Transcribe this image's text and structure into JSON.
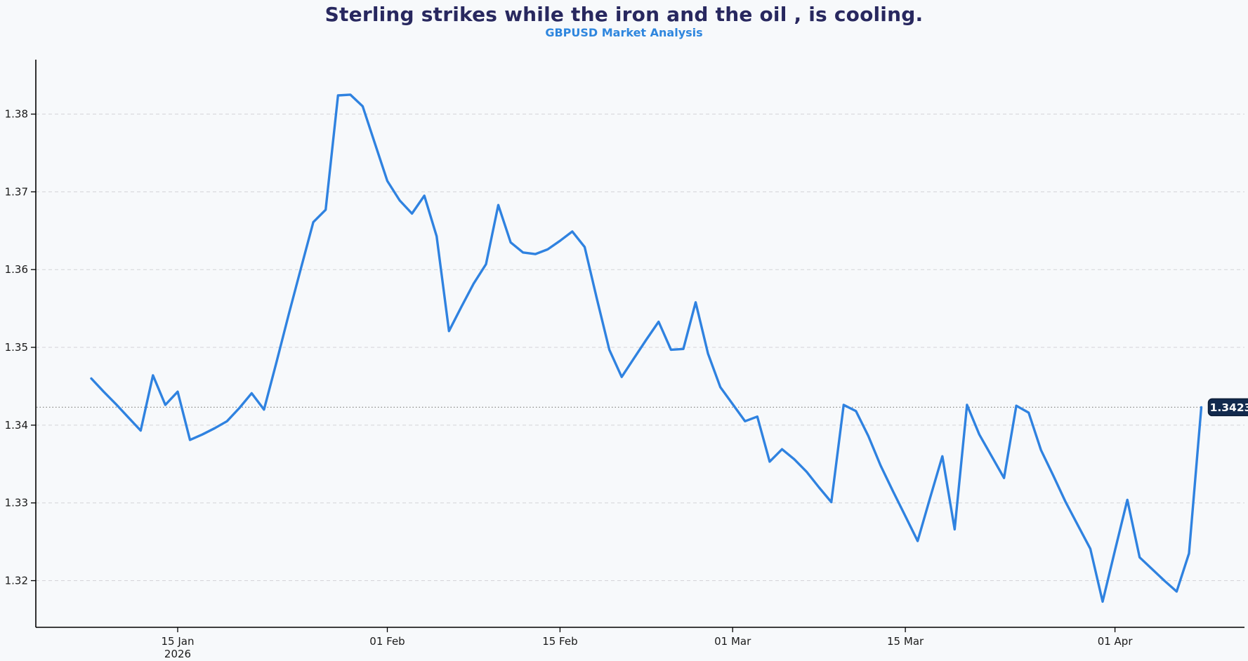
{
  "header": {
    "title": "Sterling strikes while the iron and the oil , is cooling.",
    "subtitle": "GBPUSD Market Analysis"
  },
  "colors": {
    "background": "#f7f9fb",
    "title": "#28285f",
    "subtitle": "#2e86de",
    "line": "#2f82e0",
    "grid": "#d4d4d8",
    "axis": "#000000",
    "tick_label": "#1a1a1a",
    "annotation_line": "#8a8a8a",
    "annotation_box": "#122a4e",
    "annotation_border": "#0a1b36",
    "annotation_text": "#ffffff"
  },
  "chart_data": {
    "type": "line",
    "title": "Sterling strikes while the iron and the oil , is cooling.",
    "subtitle": "GBPUSD Market Analysis",
    "xlabel": "",
    "ylabel": "",
    "grid": "horizontal-dashed",
    "legend": "none",
    "ylim": [
      1.314,
      1.387
    ],
    "xlim": [
      "2026-01-03T12:00:00",
      "2026-04-11T12:00:00"
    ],
    "yticks": [
      1.32,
      1.33,
      1.34,
      1.35,
      1.36,
      1.37,
      1.38
    ],
    "xticks": [
      {
        "date": "2026-01-15",
        "label": "15 Jan",
        "sublabel": "2026"
      },
      {
        "date": "2026-02-01",
        "label": "01 Feb",
        "sublabel": ""
      },
      {
        "date": "2026-02-15",
        "label": "15 Feb",
        "sublabel": ""
      },
      {
        "date": "2026-03-01",
        "label": "01 Mar",
        "sublabel": ""
      },
      {
        "date": "2026-03-15",
        "label": "15 Mar",
        "sublabel": ""
      },
      {
        "date": "2026-04-01",
        "label": "01 Apr",
        "sublabel": ""
      }
    ],
    "annotation": {
      "label": "1.3423",
      "value": 1.3423,
      "style": "dotted-hline-with-badge"
    },
    "series": [
      {
        "name": "GBPUSD",
        "frequency": "daily",
        "start_date": "2026-01-08",
        "end_date": "2026-04-08",
        "values": [
          1.346,
          1.3443,
          1.3427,
          1.341,
          1.3393,
          1.3464,
          1.3426,
          1.3443,
          1.3381,
          1.3388,
          1.3396,
          1.3405,
          1.3422,
          1.3441,
          1.342,
          1.348,
          1.3542,
          1.3602,
          1.3661,
          1.3677,
          1.3824,
          1.3825,
          1.381,
          1.3762,
          1.3714,
          1.3689,
          1.3672,
          1.3695,
          1.3643,
          1.3521,
          1.3552,
          1.3582,
          1.3607,
          1.3683,
          1.3635,
          1.3622,
          1.362,
          1.3626,
          1.3637,
          1.3649,
          1.3629,
          1.3562,
          1.3497,
          1.3462,
          1.3486,
          1.351,
          1.3533,
          1.3497,
          1.3498,
          1.3558,
          1.3492,
          1.3449,
          1.3427,
          1.3405,
          1.3411,
          1.3353,
          1.3369,
          1.3356,
          1.334,
          1.332,
          1.3301,
          1.3426,
          1.3418,
          1.3386,
          1.3348,
          1.3315,
          1.3283,
          1.3251,
          1.3306,
          1.336,
          1.3266,
          1.3426,
          1.3388,
          1.336,
          1.3332,
          1.3425,
          1.3416,
          1.3368,
          1.3335,
          1.3301,
          1.3271,
          1.3241,
          1.3173,
          1.3239,
          1.3304,
          1.323,
          1.3215,
          1.32,
          1.3186,
          1.3235,
          1.3423
        ]
      }
    ]
  }
}
